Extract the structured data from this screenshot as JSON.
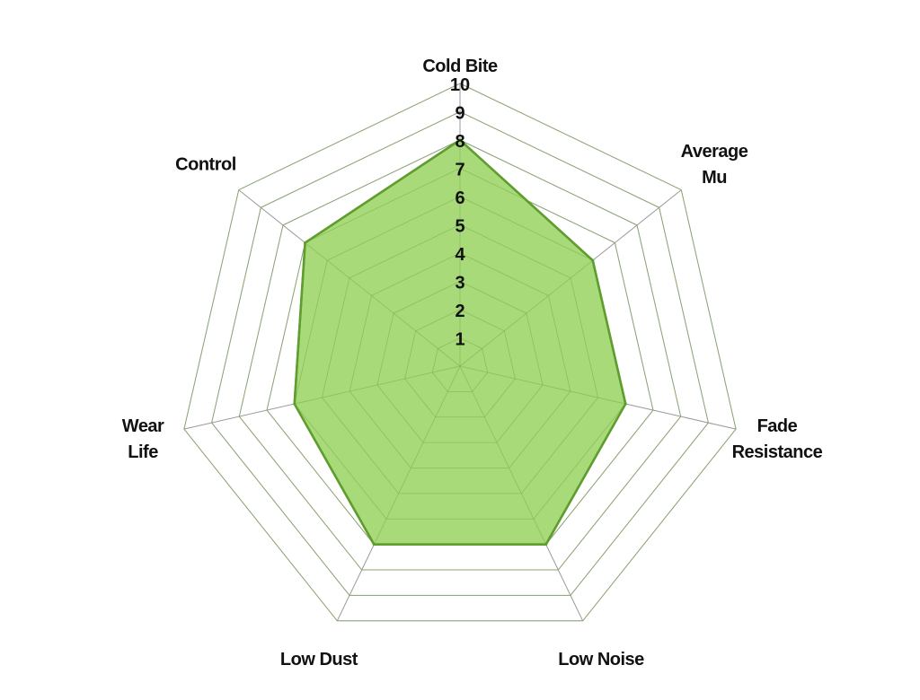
{
  "chart_data": {
    "type": "radar",
    "title": "",
    "axes": [
      {
        "label": [
          "Cold Bite"
        ],
        "value": 8
      },
      {
        "label": [
          "Average",
          "Mu"
        ],
        "value": 6
      },
      {
        "label": [
          "Fade",
          "Resistance"
        ],
        "value": 6
      },
      {
        "label": [
          "Low Noise"
        ],
        "value": 7
      },
      {
        "label": [
          "Low Dust"
        ],
        "value": 7
      },
      {
        "label": [
          "Wear",
          "Life"
        ],
        "value": 6
      },
      {
        "label": [
          "Control"
        ],
        "value": 7
      }
    ],
    "range": [
      0,
      10
    ],
    "ticks": [
      "1",
      "2",
      "3",
      "4",
      "5",
      "6",
      "7",
      "8",
      "9",
      "10"
    ],
    "grid": true,
    "colors": {
      "fill": "#a3d872",
      "stroke": "#5f9e2e",
      "grid": "#999999"
    }
  }
}
